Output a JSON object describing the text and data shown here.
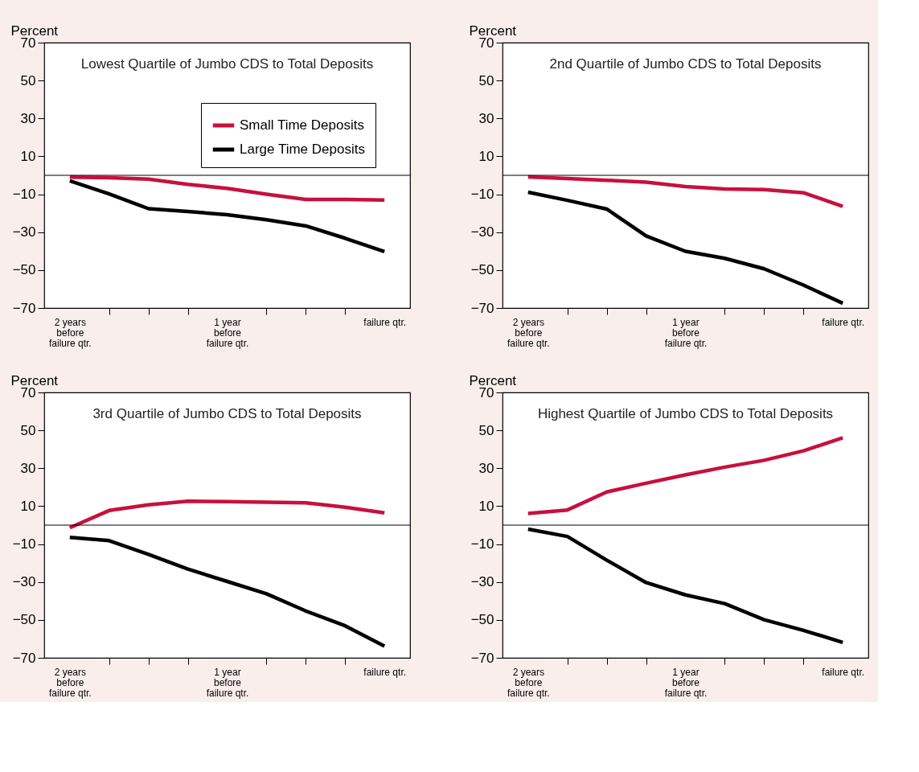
{
  "chart_data": [
    {
      "type": "line",
      "title": "Lowest Quartile of Jumbo CDS to Total Deposits",
      "ylabel": "Percent",
      "categories": [
        "2 years before failure qtr.",
        null,
        null,
        null,
        "1 year before failure qtr.",
        null,
        null,
        null,
        "failure qtr."
      ],
      "ylim": [
        -70,
        70
      ],
      "yticks": [
        -70,
        -50,
        -30,
        -10,
        10,
        30,
        50,
        70
      ],
      "grid": false,
      "legend": "top right",
      "line_style": "solid",
      "marker": "none",
      "series": [
        {
          "name": "Small Time Deposits",
          "color": "#c8103e",
          "values": [
            -1,
            -1.3,
            -2,
            -4.8,
            -6.9,
            -10,
            -12.7,
            -12.7,
            -13
          ]
        },
        {
          "name": "Large Time Deposits",
          "color": "#000000",
          "values": [
            -2.9,
            -9.8,
            -17.6,
            -19.1,
            -20.8,
            -23.4,
            -26.7,
            -33.2,
            -40.3
          ]
        }
      ],
      "ref_lines": [
        {
          "axis": "y",
          "value": 0,
          "color": "#000000"
        }
      ]
    },
    {
      "type": "line",
      "title": "2nd Quartile of Jumbo CDS to Total Deposits",
      "ylabel": "Percent",
      "categories": [
        "2 years before failure qtr.",
        null,
        null,
        null,
        "1 year before failure qtr.",
        null,
        null,
        null,
        "failure qtr."
      ],
      "ylim": [
        -70,
        70
      ],
      "yticks": [
        -70,
        -50,
        -30,
        -10,
        10,
        30,
        50,
        70
      ],
      "grid": false,
      "legend": false,
      "line_style": "solid",
      "marker": "none",
      "series": [
        {
          "color": "#c8103e",
          "values": [
            -0.8,
            -1.7,
            -2.6,
            -3.6,
            -5.9,
            -7.2,
            -7.5,
            -9.2,
            -16.4
          ]
        },
        {
          "color": "#000000",
          "values": [
            -8.9,
            -13.2,
            -17.8,
            -32,
            -40.1,
            -43.8,
            -49.3,
            -57.9,
            -67.5
          ]
        }
      ],
      "ref_lines": [
        {
          "axis": "y",
          "value": 0,
          "color": "#000000"
        }
      ]
    },
    {
      "type": "line",
      "title": "3rd Quartile of Jumbo CDS to Total Deposits",
      "ylabel": "Percent",
      "categories": [
        "2 years before failure qtr.",
        null,
        null,
        null,
        "1 year before failure qtr.",
        null,
        null,
        null,
        "failure qtr."
      ],
      "ylim": [
        -70,
        70
      ],
      "yticks": [
        -70,
        -50,
        -30,
        -10,
        10,
        30,
        50,
        70
      ],
      "grid": false,
      "legend": false,
      "line_style": "solid",
      "marker": "none",
      "series": [
        {
          "color": "#c8103e",
          "values": [
            -1.4,
            7.7,
            10.7,
            12.6,
            12.4,
            12.1,
            11.8,
            9.4,
            6.5
          ]
        },
        {
          "color": "#000000",
          "values": [
            -6.5,
            -8.2,
            -15.4,
            -23.2,
            -29.7,
            -36.2,
            -45.3,
            -53.1,
            -63.8
          ]
        }
      ],
      "ref_lines": [
        {
          "axis": "y",
          "value": 0,
          "color": "#000000"
        }
      ]
    },
    {
      "type": "line",
      "title": "Highest Quartile of Jumbo CDS to Total Deposits",
      "ylabel": "Percent",
      "categories": [
        "2 years before failure qtr.",
        null,
        null,
        null,
        "1 year before failure qtr.",
        null,
        null,
        null,
        "failure qtr."
      ],
      "ylim": [
        -70,
        70
      ],
      "yticks": [
        -70,
        -50,
        -30,
        -10,
        10,
        30,
        50,
        70
      ],
      "grid": false,
      "legend": false,
      "line_style": "solid",
      "marker": "none",
      "series": [
        {
          "color": "#c8103e",
          "values": [
            6.2,
            8,
            17.5,
            22.1,
            26.5,
            30.6,
            34.2,
            39.2,
            46.1
          ]
        },
        {
          "color": "#000000",
          "values": [
            -2.1,
            -6,
            -18.5,
            -30.3,
            -36.8,
            -41.4,
            -49.9,
            -55.5,
            -61.9
          ]
        }
      ],
      "ref_lines": [
        {
          "axis": "y",
          "value": 0,
          "color": "#000000"
        }
      ]
    }
  ]
}
